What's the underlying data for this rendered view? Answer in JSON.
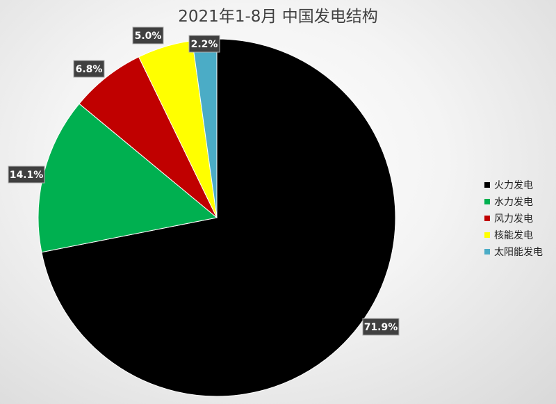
{
  "chart_data": {
    "type": "pie",
    "title": "2021年1-8月 中国发电结构",
    "start_angle": "12 o'clock",
    "direction": "clockwise",
    "legend_position": "right",
    "slices": [
      {
        "label": "火力发电",
        "value": 71.9,
        "display": "71.9%",
        "color": "#000000"
      },
      {
        "label": "水力发电",
        "value": 14.1,
        "display": "14.1%",
        "color": "#00b050"
      },
      {
        "label": "风力发电",
        "value": 6.8,
        "display": "6.8%",
        "color": "#c00000"
      },
      {
        "label": "核能发电",
        "value": 5.0,
        "display": "5.0%",
        "color": "#ffff00"
      },
      {
        "label": "太阳能发电",
        "value": 2.2,
        "display": "2.2%",
        "color": "#4bacc6"
      }
    ]
  }
}
